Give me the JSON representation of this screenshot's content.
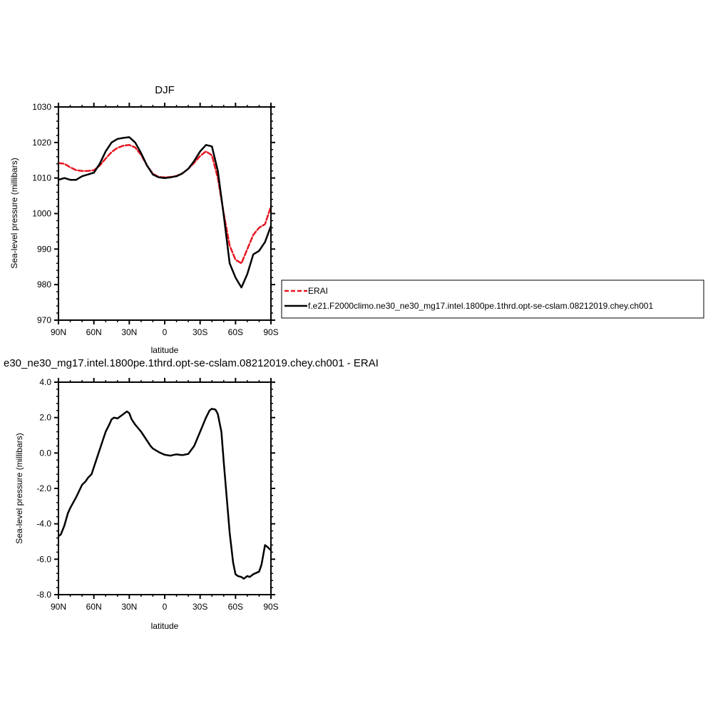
{
  "chart_data": [
    {
      "type": "line",
      "title": "DJF",
      "xlabel": "latitude",
      "ylabel": "Sea-level pressure (millibars)",
      "xlim": [
        90,
        -90
      ],
      "ylim": [
        970,
        1030
      ],
      "xticks": [
        90,
        60,
        30,
        0,
        -30,
        -60,
        -90
      ],
      "xtick_labels": [
        "90N",
        "60N",
        "30N",
        "0",
        "30S",
        "60S",
        "90S"
      ],
      "yticks": [
        970,
        980,
        990,
        1000,
        1010,
        1020,
        1030
      ],
      "ytick_labels": [
        "970",
        "980",
        "990",
        "1000",
        "1010",
        "1020",
        "1030"
      ],
      "grid": false,
      "legend": "right, outside plot",
      "series": [
        {
          "name": "ERAI",
          "color": "#e8151f",
          "dash": "dashed",
          "x": [
            90,
            85,
            80,
            75,
            70,
            65,
            60,
            55,
            50,
            45,
            40,
            35,
            30,
            25,
            20,
            15,
            10,
            5,
            0,
            -5,
            -10,
            -15,
            -20,
            -25,
            -30,
            -35,
            -40,
            -45,
            -50,
            -55,
            -60,
            -65,
            -70,
            -75,
            -80,
            -85,
            -90
          ],
          "y": [
            1014.2,
            1014,
            1013,
            1012.2,
            1012,
            1012,
            1012.2,
            1013.5,
            1015.5,
            1017.3,
            1018.5,
            1019.1,
            1019.3,
            1018.6,
            1016.5,
            1013.5,
            1011.2,
            1010.3,
            1010.2,
            1010.3,
            1010.6,
            1011.3,
            1012.6,
            1014.3,
            1016.2,
            1017.5,
            1016.4,
            1010,
            1000,
            991,
            987,
            986,
            990,
            994,
            996,
            997,
            1002
          ]
        },
        {
          "name": "f.e21.F2000climo.ne30_ne30_mg17.intel.1800pe.1thrd.opt-se-cslam.08212019.chey.ch001",
          "color": "#000000",
          "dash": "solid",
          "x": [
            90,
            85,
            80,
            75,
            70,
            65,
            60,
            55,
            50,
            45,
            40,
            35,
            30,
            25,
            20,
            15,
            10,
            5,
            0,
            -5,
            -10,
            -15,
            -20,
            -25,
            -30,
            -35,
            -40,
            -45,
            -50,
            -55,
            -60,
            -65,
            -70,
            -75,
            -80,
            -85,
            -90
          ],
          "y": [
            1009.5,
            1010,
            1009.5,
            1009.5,
            1010.5,
            1011,
            1011.5,
            1014,
            1017.5,
            1020,
            1021,
            1021.3,
            1021.5,
            1020,
            1017,
            1013.5,
            1011,
            1010.2,
            1010,
            1010.2,
            1010.5,
            1011.3,
            1012.6,
            1014.8,
            1017.5,
            1019.3,
            1018.9,
            1012,
            999.5,
            986,
            982,
            979.2,
            983,
            988.5,
            989.5,
            992,
            996.5
          ]
        }
      ]
    },
    {
      "type": "line",
      "title": "e30_ne30_mg17.intel.1800pe.1thrd.opt-se-cslam.08212019.chey.ch001 - ERAI",
      "xlabel": "latitude",
      "ylabel": "Sea-level pressure (millibars)",
      "xlim": [
        90,
        -90
      ],
      "ylim": [
        -8,
        4
      ],
      "xticks": [
        90,
        60,
        30,
        0,
        -30,
        -60,
        -90
      ],
      "xtick_labels": [
        "90N",
        "60N",
        "30N",
        "0",
        "30S",
        "60S",
        "90S"
      ],
      "yticks": [
        -8,
        -6,
        -4,
        -2,
        0,
        2,
        4
      ],
      "ytick_labels": [
        "-8.0",
        "-6.0",
        "-4.0",
        "-2.0",
        "0.0",
        "2.0",
        "4.0"
      ],
      "grid": false,
      "series": [
        {
          "color": "#000000",
          "dash": "solid",
          "x": [
            90,
            88,
            85,
            82,
            80,
            75,
            70,
            67,
            65,
            62,
            60,
            55,
            50,
            47,
            45,
            43,
            40,
            37,
            35,
            32,
            30,
            28,
            25,
            20,
            15,
            12,
            10,
            5,
            0,
            -5,
            -8,
            -10,
            -15,
            -20,
            -25,
            -30,
            -35,
            -38,
            -40,
            -43,
            -45,
            -48,
            -50,
            -55,
            -58,
            -60,
            -62,
            -65,
            -67,
            -70,
            -72,
            -75,
            -80,
            -82,
            -85,
            -87,
            -90
          ],
          "y": [
            -4.7,
            -4.6,
            -4.1,
            -3.4,
            -3.1,
            -2.5,
            -1.8,
            -1.6,
            -1.4,
            -1.2,
            -0.8,
            0.2,
            1.2,
            1.6,
            1.9,
            2.0,
            1.95,
            2.1,
            2.2,
            2.35,
            2.25,
            1.9,
            1.6,
            1.2,
            0.7,
            0.4,
            0.25,
            0.05,
            -0.1,
            -0.15,
            -0.1,
            -0.08,
            -0.12,
            -0.05,
            0.4,
            1.2,
            2.0,
            2.4,
            2.5,
            2.45,
            2.2,
            1.2,
            -0.5,
            -4.5,
            -6.2,
            -6.85,
            -6.95,
            -7.0,
            -7.1,
            -6.95,
            -7.0,
            -6.85,
            -6.7,
            -6.3,
            -5.2,
            -5.3,
            -5.5
          ]
        }
      ]
    }
  ]
}
